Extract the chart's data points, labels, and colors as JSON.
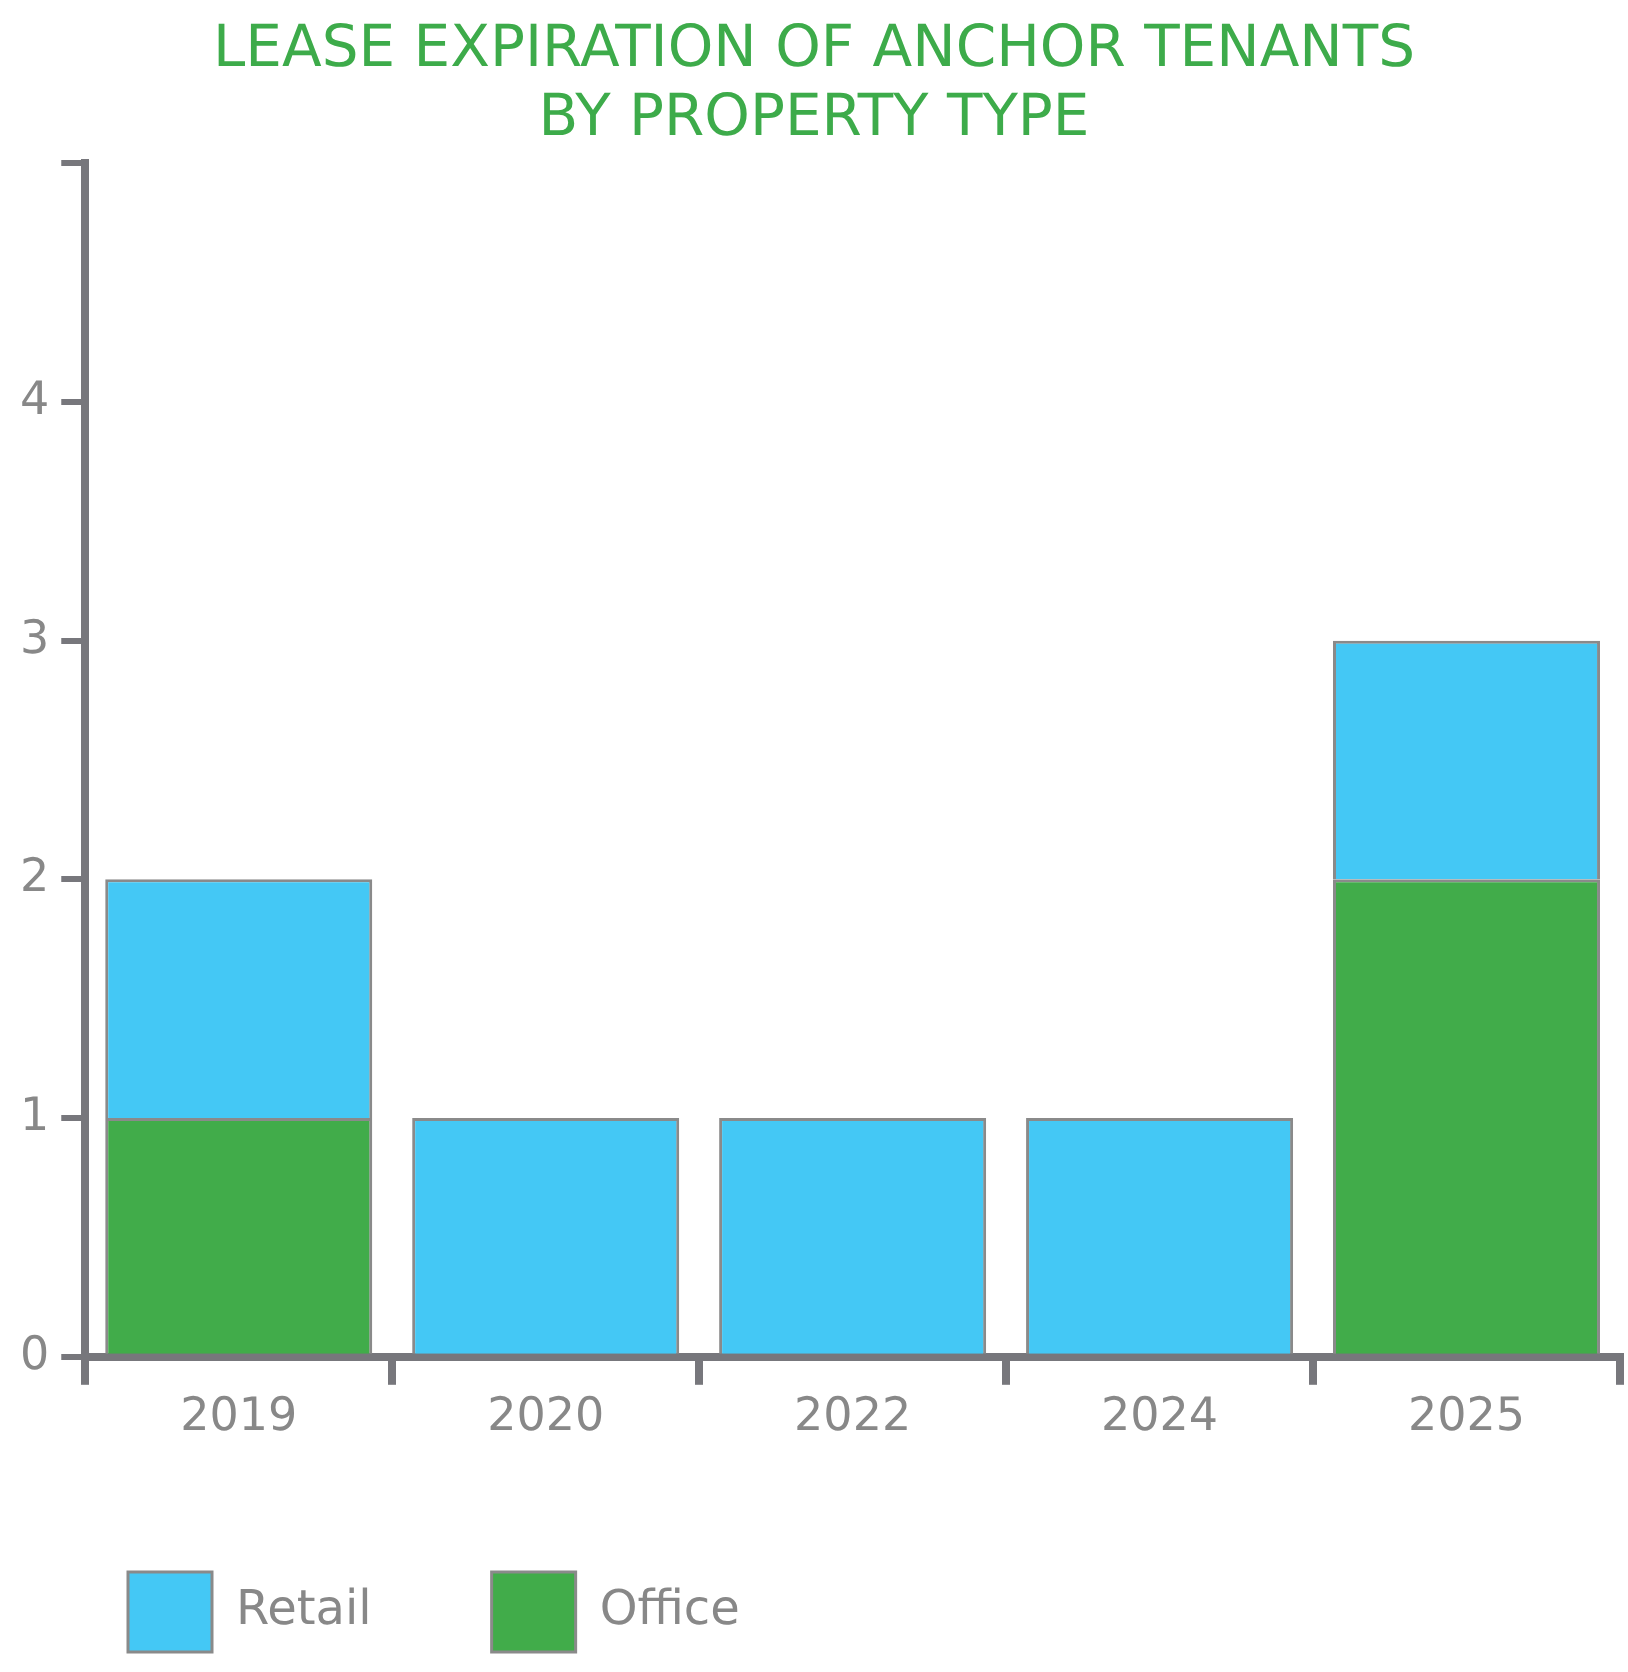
{
  "chart_data": {
    "type": "bar",
    "title": "LEASE EXPIRATION OF ANCHOR TENANTS BY PROPERTY TYPE",
    "stacked": true,
    "categories": [
      "2019",
      "2020",
      "2022",
      "2024",
      "2025"
    ],
    "series": [
      {
        "name": "Office",
        "color": "#41ac4a",
        "values": [
          1,
          0,
          0,
          0,
          2
        ]
      },
      {
        "name": "Retail",
        "color": "#44c8f5",
        "values": [
          1,
          1,
          1,
          1,
          1
        ]
      }
    ],
    "ylim": [
      0,
      5
    ],
    "yticks": [
      0,
      1,
      2,
      3,
      4,
      {
        "value": 5,
        "label": null
      }
    ],
    "grid": false,
    "legend": "bottom left"
  }
}
